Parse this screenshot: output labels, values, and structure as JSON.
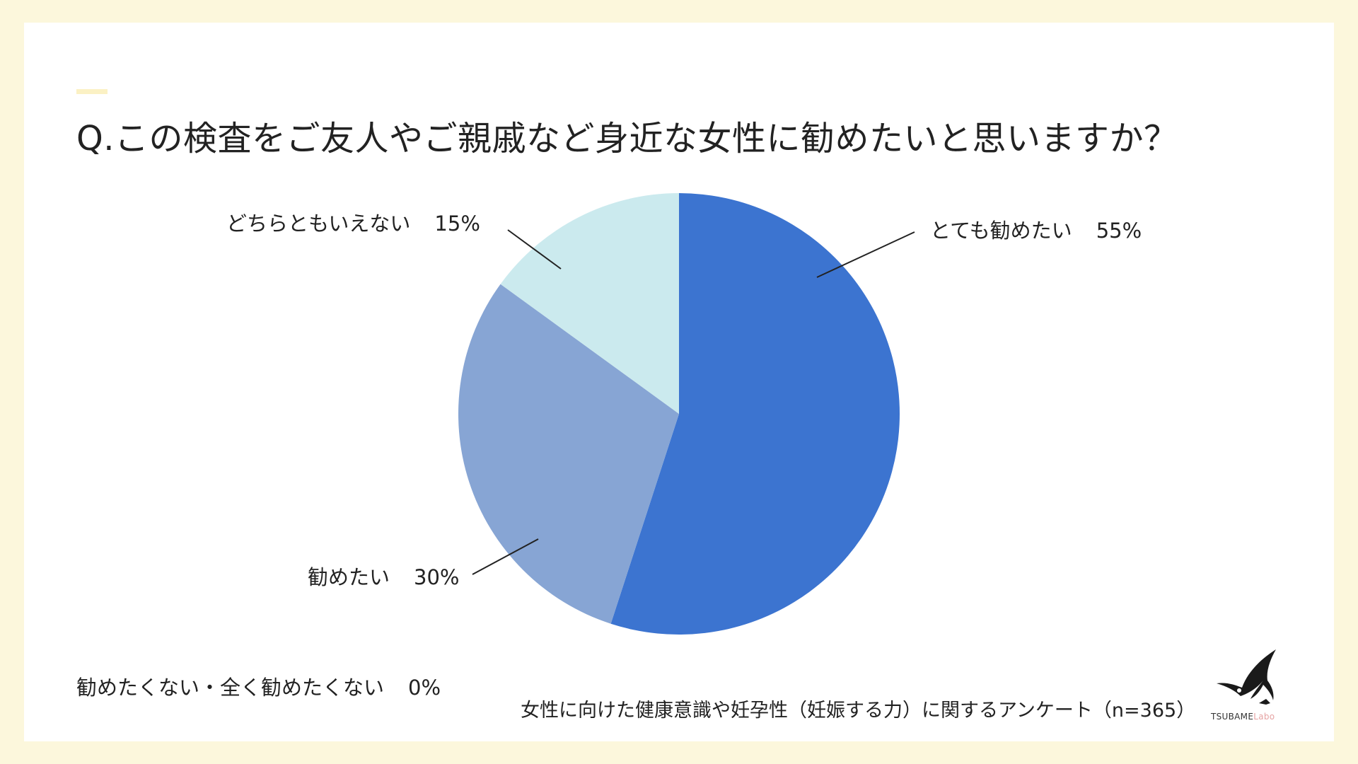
{
  "title": "Q.この検査をご友人やご親戚など身近な女性に勧めたいと思いますか？",
  "footnote": "女性に向けた健康意識や妊孕性（妊娠する力）に関するアンケート（n=365）",
  "logo": {
    "text_main": "TSUBAME",
    "text_sub": "Labo",
    "icon": "swallow-icon"
  },
  "colors": {
    "background": "#fcf7dc",
    "accent": "#fbf1c4",
    "slice_very": "#3c74d0",
    "slice_want": "#87a5d4",
    "slice_neutral": "#cbeaee"
  },
  "chart_data": {
    "type": "pie",
    "title": "Q.この検査をご友人やご親戚など身近な女性に勧めたいと思いますか？",
    "slices": [
      {
        "label": "とても勧めたい",
        "value": 55,
        "display": "55%",
        "color": "#3c74d0"
      },
      {
        "label": "勧めたい",
        "value": 30,
        "display": "30%",
        "color": "#87a5d4"
      },
      {
        "label": "どちらともいえない",
        "value": 15,
        "display": "15%",
        "color": "#cbeaee"
      },
      {
        "label": "勧めたくない・全く勧めたくない",
        "value": 0,
        "display": "0%",
        "color": "#3c74d0"
      }
    ],
    "start_angle": "12 o'clock",
    "direction": "clockwise"
  }
}
